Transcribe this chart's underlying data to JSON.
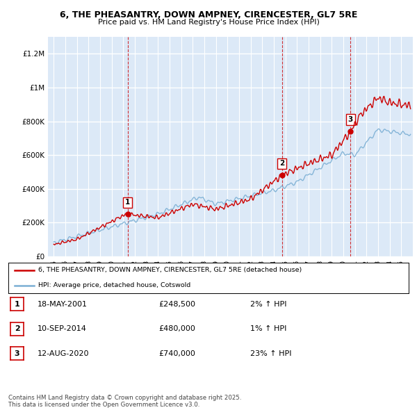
{
  "title_line1": "6, THE PHEASANTRY, DOWN AMPNEY, CIRENCESTER, GL7 5RE",
  "title_line2": "Price paid vs. HM Land Registry's House Price Index (HPI)",
  "legend_label_red": "6, THE PHEASANTRY, DOWN AMPNEY, CIRENCESTER, GL7 5RE (detached house)",
  "legend_label_blue": "HPI: Average price, detached house, Cotswold",
  "sale_points": [
    {
      "label": "1",
      "date": "18-MAY-2001",
      "price": 248500,
      "hpi_pct": "2%",
      "x": 2001.38
    },
    {
      "label": "2",
      "date": "10-SEP-2014",
      "price": 480000,
      "hpi_pct": "1%",
      "x": 2014.69
    },
    {
      "label": "3",
      "date": "12-AUG-2020",
      "price": 740000,
      "hpi_pct": "23%",
      "x": 2020.62
    }
  ],
  "table_rows": [
    [
      "1",
      "18-MAY-2001",
      "£248,500",
      "2% ↑ HPI"
    ],
    [
      "2",
      "10-SEP-2014",
      "£480,000",
      "1% ↑ HPI"
    ],
    [
      "3",
      "12-AUG-2020",
      "£740,000",
      "23% ↑ HPI"
    ]
  ],
  "footer": "Contains HM Land Registry data © Crown copyright and database right 2025.\nThis data is licensed under the Open Government Licence v3.0.",
  "ylim": [
    0,
    1300000
  ],
  "xlim": [
    1994.5,
    2026.0
  ],
  "yticks": [
    0,
    200000,
    400000,
    600000,
    800000,
    1000000,
    1200000
  ],
  "ytick_labels": [
    "£0",
    "£200K",
    "£400K",
    "£600K",
    "£800K",
    "£1M",
    "£1.2M"
  ],
  "plot_bg_color": "#dce9f7",
  "grid_color": "#ffffff",
  "red_line_color": "#cc0000",
  "blue_line_color": "#7bafd4",
  "sale_marker_color": "#cc0000",
  "vline_color": "#cc0000"
}
